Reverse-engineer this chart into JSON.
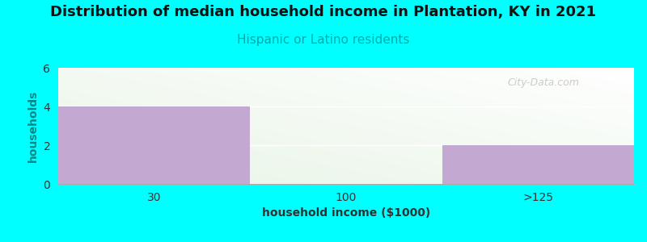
{
  "title": "Distribution of median household income in Plantation, KY in 2021",
  "subtitle": "Hispanic or Latino residents",
  "xlabel": "household income ($1000)",
  "ylabel": "households",
  "background_color": "#00FFFF",
  "bar_color": "#C3A8D1",
  "categories": [
    "30",
    "100",
    ">125"
  ],
  "values": [
    4,
    0,
    2
  ],
  "ylim": [
    0,
    6
  ],
  "yticks": [
    0,
    2,
    4,
    6
  ],
  "title_fontsize": 13,
  "subtitle_fontsize": 11,
  "subtitle_color": "#00AAAA",
  "watermark": "City-Data.com",
  "ylabel_color": "#008888",
  "xlabel_color": "#333333",
  "bin_edges": [
    0,
    1,
    2,
    3
  ],
  "chart_bg_colors": [
    "#e8f5e5",
    "#ffffff"
  ]
}
